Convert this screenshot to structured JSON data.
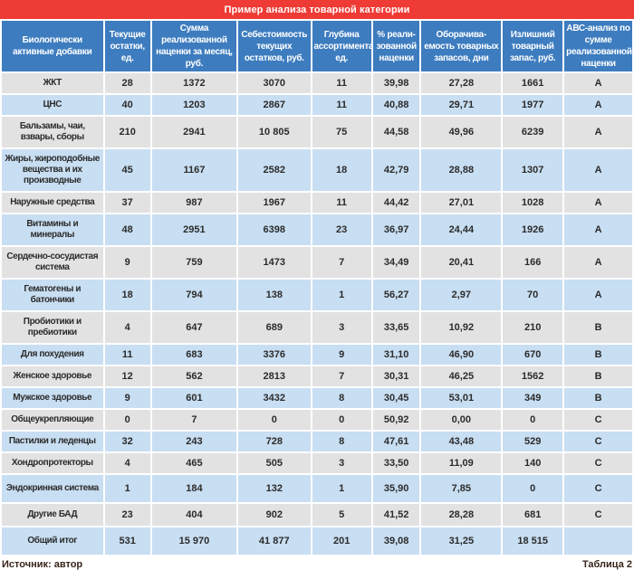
{
  "title": "Пример анализа товарной категории",
  "colors": {
    "accent_red": "#ee3b35",
    "header_blue": "#3d7cbf",
    "row_blue": "#c8def2",
    "row_gray": "#e2e2e2"
  },
  "table": {
    "headers": [
      "Биологически активные добавки",
      "Текущие остатки, ед.",
      "Сумма реализованной наценки за месяц, руб.",
      "Себестоимость текущих остатков, руб.",
      "Глубина ассортимента, ед.",
      "% реали­зованной наценки",
      "Оборачива­емость товарных запасов, дни",
      "Излишний товарный запас, руб.",
      "АВС-анализ по сумме реализованной наценки"
    ],
    "rows": [
      {
        "cells": [
          "ЖКТ",
          "28",
          "1372",
          "3070",
          "11",
          "39,98",
          "27,28",
          "1661",
          "А"
        ]
      },
      {
        "cells": [
          "ЦНС",
          "40",
          "1203",
          "2867",
          "11",
          "40,88",
          "29,71",
          "1977",
          "А"
        ]
      },
      {
        "cells": [
          "Бальзамы, чаи, взвары, сборы",
          "210",
          "2941",
          "10 805",
          "75",
          "44,58",
          "49,96",
          "6239",
          "А"
        ]
      },
      {
        "cells": [
          "Жиры, жироподобные вещества и их производные",
          "45",
          "1167",
          "2582",
          "18",
          "42,79",
          "28,88",
          "1307",
          "А"
        ]
      },
      {
        "cells": [
          "Наружные средства",
          "37",
          "987",
          "1967",
          "11",
          "44,42",
          "27,01",
          "1028",
          "А"
        ]
      },
      {
        "cells": [
          "Витамины и минералы",
          "48",
          "2951",
          "6398",
          "23",
          "36,97",
          "24,44",
          "1926",
          "А"
        ]
      },
      {
        "cells": [
          "Сердечно-сосудистая система",
          "9",
          "759",
          "1473",
          "7",
          "34,49",
          "20,41",
          "166",
          "А"
        ]
      },
      {
        "cells": [
          "Гематогены и батончики",
          "18",
          "794",
          "138",
          "1",
          "56,27",
          "2,97",
          "70",
          "А"
        ]
      },
      {
        "cells": [
          "Пробиотики и пребиотики",
          "4",
          "647",
          "689",
          "3",
          "33,65",
          "10,92",
          "210",
          "В"
        ]
      },
      {
        "cells": [
          "Для похудения",
          "11",
          "683",
          "3376",
          "9",
          "31,10",
          "46,90",
          "670",
          "В"
        ]
      },
      {
        "cells": [
          "Женское здоровье",
          "12",
          "562",
          "2813",
          "7",
          "30,31",
          "46,25",
          "1562",
          "В"
        ]
      },
      {
        "cells": [
          "Мужское здоровье",
          "9",
          "601",
          "3432",
          "8",
          "30,45",
          "53,01",
          "349",
          "В"
        ]
      },
      {
        "cells": [
          "Общеукрепляющие",
          "0",
          "7",
          "0",
          "0",
          "50,92",
          "0,00",
          "0",
          "С"
        ]
      },
      {
        "cells": [
          "Пастилки и леденцы",
          "32",
          "243",
          "728",
          "8",
          "47,61",
          "43,48",
          "529",
          "С"
        ]
      },
      {
        "cells": [
          "Хондропротекторы",
          "4",
          "465",
          "505",
          "3",
          "33,50",
          "11,09",
          "140",
          "С"
        ]
      },
      {
        "cells": [
          "Эндокринная система",
          "1",
          "184",
          "132",
          "1",
          "35,90",
          "7,85",
          "0",
          "С"
        ]
      },
      {
        "cells": [
          "Другие БАД",
          "23",
          "404",
          "902",
          "5",
          "41,52",
          "28,28",
          "681",
          "С"
        ]
      },
      {
        "cells": [
          "Общий итог",
          "531",
          "15 970",
          "41 877",
          "201",
          "39,08",
          "31,25",
          "18 515",
          ""
        ]
      }
    ]
  },
  "footer": {
    "source": "Источник: автор",
    "table_label": "Таблица 2"
  }
}
